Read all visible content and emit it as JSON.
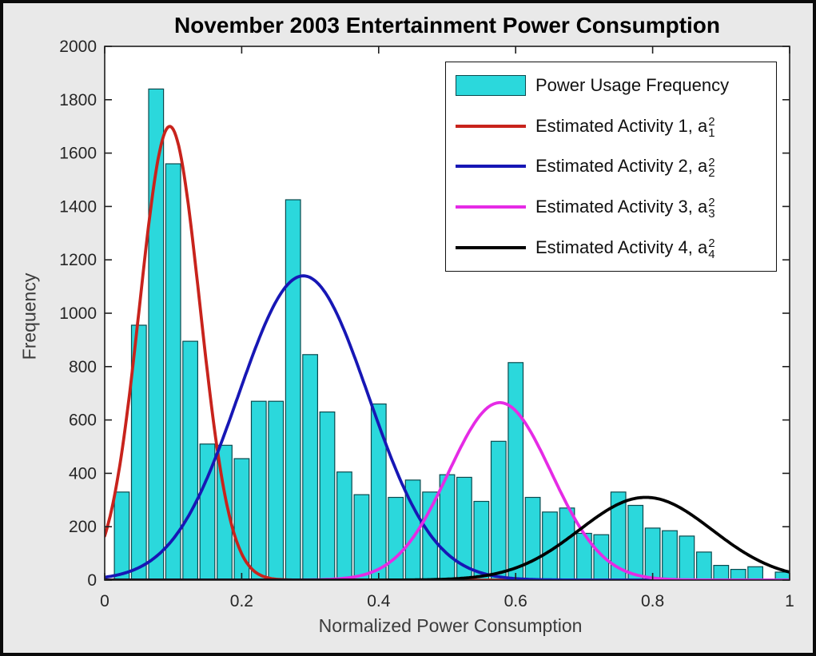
{
  "figure": {
    "background_color": "#e9e9e9",
    "border_color": "#0b0b0b",
    "plot_background": "#ffffff"
  },
  "chart_data": {
    "type": "bar",
    "subtype": "histogram-with-gaussian-curves",
    "title": "November 2003 Entertainment Power Consumption",
    "xlabel": "Normalized Power Consumption",
    "ylabel": "Frequency",
    "xlim": [
      0,
      1
    ],
    "ylim": [
      0,
      2000
    ],
    "xticks": [
      0,
      0.2,
      0.4,
      0.6,
      0.8,
      1
    ],
    "xtick_labels": [
      "0",
      "0.2",
      "0.4",
      "0.6",
      "0.8",
      "1"
    ],
    "yticks": [
      0,
      200,
      400,
      600,
      800,
      1000,
      1200,
      1400,
      1600,
      1800,
      2000
    ],
    "ytick_labels": [
      "0",
      "200",
      "400",
      "600",
      "800",
      "1000",
      "1200",
      "1400",
      "1600",
      "1800",
      "2000"
    ],
    "grid": false,
    "legend_position": "upper right",
    "histogram": {
      "legend_label": "Power Usage Frequency",
      "bar_color": "#2bd8dc",
      "bar_edge_color": "#0a4a4e",
      "bin_width": 0.025,
      "bin_centers": [
        0.025,
        0.05,
        0.075,
        0.1,
        0.125,
        0.15,
        0.175,
        0.2,
        0.225,
        0.25,
        0.275,
        0.3,
        0.325,
        0.35,
        0.375,
        0.4,
        0.425,
        0.45,
        0.475,
        0.5,
        0.525,
        0.55,
        0.575,
        0.6,
        0.625,
        0.65,
        0.675,
        0.7,
        0.725,
        0.75,
        0.775,
        0.8,
        0.825,
        0.85,
        0.875,
        0.9,
        0.925,
        0.95,
        0.99
      ],
      "frequencies": [
        330,
        955,
        1840,
        1560,
        895,
        510,
        505,
        455,
        670,
        670,
        1425,
        845,
        630,
        405,
        320,
        660,
        310,
        375,
        330,
        395,
        385,
        295,
        520,
        815,
        310,
        255,
        270,
        175,
        170,
        330,
        280,
        195,
        185,
        165,
        105,
        55,
        40,
        50,
        30
      ]
    },
    "curves": [
      {
        "legend_label": "Estimated Activity 1, a",
        "var_sup": "2",
        "var_sub": "1",
        "color": "#c8231c",
        "peak": 1700,
        "mean": 0.095,
        "sigma": 0.044
      },
      {
        "legend_label": "Estimated Activity 2, a",
        "var_sup": "2",
        "var_sub": "2",
        "color": "#1717b5",
        "peak": 1140,
        "mean": 0.29,
        "sigma": 0.095
      },
      {
        "legend_label": "Estimated Activity 3, a",
        "var_sup": "2",
        "var_sub": "3",
        "color": "#e52be5",
        "peak": 665,
        "mean": 0.577,
        "sigma": 0.075
      },
      {
        "legend_label": "Estimated Activity 4, a",
        "var_sup": "2",
        "var_sub": "4",
        "color": "#000000",
        "peak": 310,
        "mean": 0.79,
        "sigma": 0.097
      }
    ],
    "axis_color": "#1f1f1f",
    "tick_label_color": "#262626"
  }
}
